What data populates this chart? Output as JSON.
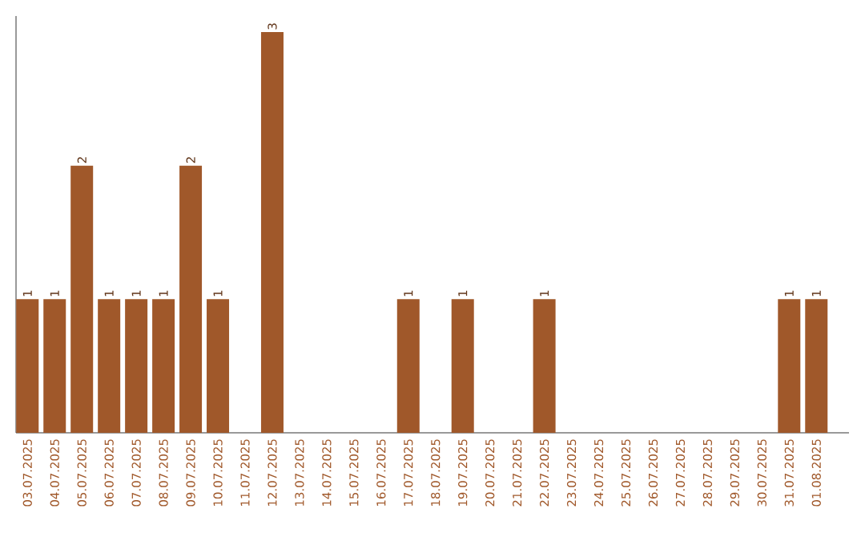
{
  "chart_data": {
    "type": "bar",
    "categories": [
      "03.07.2025",
      "04.07.2025",
      "05.07.2025",
      "06.07.2025",
      "07.07.2025",
      "08.07.2025",
      "09.07.2025",
      "10.07.2025",
      "11.07.2025",
      "12.07.2025",
      "13.07.2025",
      "14.07.2025",
      "15.07.2025",
      "16.07.2025",
      "17.07.2025",
      "18.07.2025",
      "19.07.2025",
      "20.07.2025",
      "21.07.2025",
      "22.07.2025",
      "23.07.2025",
      "24.07.2025",
      "25.07.2025",
      "26.07.2025",
      "27.07.2025",
      "28.07.2025",
      "29.07.2025",
      "30.07.2025",
      "31.07.2025",
      "01.08.2025"
    ],
    "values": [
      1,
      1,
      2,
      1,
      1,
      1,
      2,
      1,
      0,
      3,
      0,
      0,
      0,
      0,
      1,
      0,
      1,
      0,
      0,
      1,
      0,
      0,
      0,
      0,
      0,
      0,
      0,
      0,
      1,
      1
    ],
    "value_labels": [
      "1",
      "1",
      "2",
      "1",
      "1",
      "1",
      "2",
      "1",
      null,
      "3",
      null,
      null,
      null,
      null,
      "1",
      null,
      "1",
      null,
      null,
      "1",
      null,
      null,
      null,
      null,
      null,
      null,
      null,
      null,
      "1",
      "1"
    ],
    "color": "#a0582a",
    "ylim": [
      0,
      3.12
    ],
    "grid": false,
    "tick_labels": "x"
  }
}
